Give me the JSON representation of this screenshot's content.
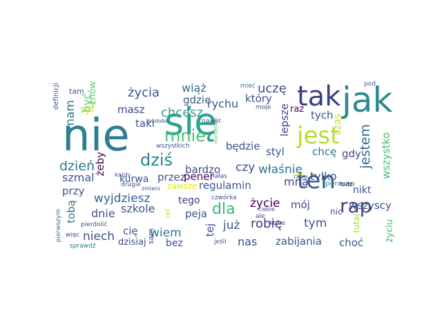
{
  "cloud": {
    "words": [
      {
        "text": "nie",
        "color": "#2e7f8e"
      },
      {
        "text": "się",
        "color": "#2aa48a"
      },
      {
        "text": "jak",
        "color": "#2f8a8c"
      },
      {
        "text": "tak",
        "color": "#3b3f86"
      },
      {
        "text": "ten",
        "color": "#35608d"
      },
      {
        "text": "jest",
        "color": "#b3dd2e"
      },
      {
        "text": "rap",
        "color": "#414487"
      },
      {
        "text": "mnie",
        "color": "#4ac16d"
      },
      {
        "text": "dziś",
        "color": "#25858e"
      },
      {
        "text": "dla",
        "color": "#35b779"
      },
      {
        "text": "jestem",
        "color": "#31688e"
      },
      {
        "text": "życia",
        "color": "#3b528b"
      },
      {
        "text": "uczę",
        "color": "#3e4a89"
      },
      {
        "text": "chcesz",
        "color": "#3a9a8b"
      },
      {
        "text": "wiąż",
        "color": "#2e6e8e"
      },
      {
        "text": "rychu",
        "color": "#3a538b"
      },
      {
        "text": "gdzie",
        "color": "#3b528b"
      },
      {
        "text": "masz",
        "color": "#404688"
      },
      {
        "text": "mam",
        "color": "#2a788e"
      },
      {
        "text": "być",
        "color": "#62cb5f"
      },
      {
        "text": "który",
        "color": "#3c508b"
      },
      {
        "text": "lepsze",
        "color": "#3f4889"
      },
      {
        "text": "raz",
        "color": "#440154"
      },
      {
        "text": "tych",
        "color": "#3b528b"
      },
      {
        "text": "czas",
        "color": "#d0e11c"
      },
      {
        "text": "syf",
        "color": "#c2df23"
      },
      {
        "text": "znów",
        "color": "#5ec962"
      },
      {
        "text": "taki",
        "color": "#3b528b"
      },
      {
        "text": "będzie",
        "color": "#3e4989"
      },
      {
        "text": "styl",
        "color": "#39568c"
      },
      {
        "text": "chcę",
        "color": "#2c738e"
      },
      {
        "text": "gdy",
        "color": "#404387"
      },
      {
        "text": "wszystko",
        "color": "#44bf70"
      },
      {
        "text": "dzień",
        "color": "#287c8e"
      },
      {
        "text": "czy",
        "color": "#3e4a89"
      },
      {
        "text": "właśnie",
        "color": "#2a788e"
      },
      {
        "text": "żeby",
        "color": "#440154"
      },
      {
        "text": "szmal",
        "color": "#3b528b"
      },
      {
        "text": "bardzo",
        "color": "#3e4c8a"
      },
      {
        "text": "kurwa",
        "color": "#3b528b"
      },
      {
        "text": "przez",
        "color": "#3e4c8a"
      },
      {
        "text": "mną",
        "color": "#404387"
      },
      {
        "text": "tylko",
        "color": "#3a548c"
      },
      {
        "text": "zawsze",
        "color": "#e2e418"
      },
      {
        "text": "regulamin",
        "color": "#39568c"
      },
      {
        "text": "przy",
        "color": "#3c4f8a"
      },
      {
        "text": "nikt",
        "color": "#3b528b"
      },
      {
        "text": "wyjdziesz",
        "color": "#33638d"
      },
      {
        "text": "pener",
        "color": "#440154"
      },
      {
        "text": "życie",
        "color": "#440154"
      },
      {
        "text": "mój",
        "color": "#3e4989"
      },
      {
        "text": "tego",
        "color": "#453781"
      },
      {
        "text": "wszyscy",
        "color": "#3b528b"
      },
      {
        "text": "tobą",
        "color": "#2a788e"
      },
      {
        "text": "szkole",
        "color": "#3b528b"
      },
      {
        "text": "robię",
        "color": "#46337e"
      },
      {
        "text": "tym",
        "color": "#3b528b"
      },
      {
        "text": "peja",
        "color": "#3a548c"
      },
      {
        "text": "dnie",
        "color": "#3b528b"
      },
      {
        "text": "nic",
        "color": "#3e4c8a"
      },
      {
        "text": "tutaj",
        "color": "#9fda3a"
      },
      {
        "text": "niech",
        "color": "#3b528b"
      },
      {
        "text": "wiem",
        "color": "#2b758e"
      },
      {
        "text": "już",
        "color": "#3b528b"
      },
      {
        "text": "tej",
        "color": "#3e4989"
      },
      {
        "text": "cię",
        "color": "#3b528b"
      },
      {
        "text": "nas",
        "color": "#3f4889"
      },
      {
        "text": "zabijania",
        "color": "#3b528b"
      },
      {
        "text": "choć",
        "color": "#3b528b"
      },
      {
        "text": "życiu",
        "color": "#3dbc74"
      },
      {
        "text": "dzisiaj",
        "color": "#3e4c8a"
      },
      {
        "text": "bez",
        "color": "#3b528b"
      },
      {
        "text": "sam",
        "color": "#3e4c8a"
      },
      {
        "text": "definicji",
        "color": "#3b528b"
      },
      {
        "text": "tam",
        "color": "#3b528b"
      },
      {
        "text": "mieć",
        "color": "#2a788e"
      },
      {
        "text": "moje",
        "color": "#3e4c8a"
      },
      {
        "text": "pod",
        "color": "#3e4c8a"
      },
      {
        "text": "podoba",
        "color": "#3b528b"
      },
      {
        "text": "nawet",
        "color": "#3e4c8a"
      },
      {
        "text": "numerem",
        "color": "#5ec962"
      },
      {
        "text": "wszystkich",
        "color": "#3b528b"
      },
      {
        "text": "każdy",
        "color": "#3e4c8a"
      },
      {
        "text": "drugie",
        "color": "#3b528b"
      },
      {
        "text": "zmieni",
        "color": "#3b528b"
      },
      {
        "text": "hałas",
        "color": "#3e4c8a"
      },
      {
        "text": "ludzi",
        "color": "#440154"
      },
      {
        "text": "rapu",
        "color": "#3b528b"
      },
      {
        "text": "ciebie",
        "color": "#3e4c8a"
      },
      {
        "text": "oni",
        "color": "#e2e418"
      },
      {
        "text": "pierwsze",
        "color": "#2a788e"
      },
      {
        "text": "czwórka",
        "color": "#3b528b"
      },
      {
        "text": "ale",
        "color": "#3e4c8a"
      },
      {
        "text": "które",
        "color": "#3b528b"
      },
      {
        "text": "ref",
        "color": "#b5de2b"
      },
      {
        "text": "pierwszym",
        "color": "#2a788e"
      },
      {
        "text": "pierdolić",
        "color": "#3b528b"
      },
      {
        "text": "więc",
        "color": "#3e4c8a"
      },
      {
        "text": "sprawdź",
        "color": "#2a788e"
      },
      {
        "text": "jeśli",
        "color": "#3e4c8a"
      }
    ]
  }
}
